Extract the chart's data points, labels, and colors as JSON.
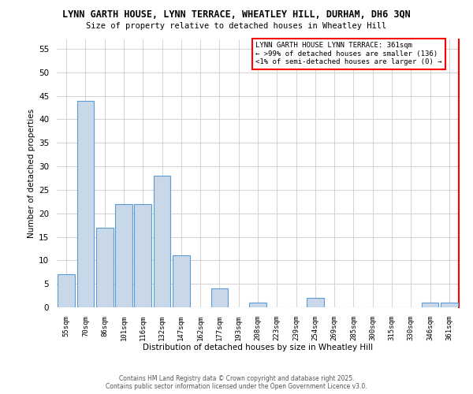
{
  "title": "LYNN GARTH HOUSE, LYNN TERRACE, WHEATLEY HILL, DURHAM, DH6 3QN",
  "subtitle": "Size of property relative to detached houses in Wheatley Hill",
  "xlabel": "Distribution of detached houses by size in Wheatley Hill",
  "ylabel": "Number of detached properties",
  "categories": [
    "55sqm",
    "70sqm",
    "86sqm",
    "101sqm",
    "116sqm",
    "132sqm",
    "147sqm",
    "162sqm",
    "177sqm",
    "193sqm",
    "208sqm",
    "223sqm",
    "239sqm",
    "254sqm",
    "269sqm",
    "285sqm",
    "300sqm",
    "315sqm",
    "330sqm",
    "346sqm",
    "361sqm"
  ],
  "values": [
    7,
    44,
    17,
    22,
    22,
    28,
    11,
    0,
    4,
    0,
    1,
    0,
    0,
    2,
    0,
    0,
    0,
    0,
    0,
    1,
    1
  ],
  "bar_color": "#c8d8e8",
  "bar_edge_color": "#5b9bd5",
  "highlight_line_color": "#ff0000",
  "ylim": [
    0,
    57
  ],
  "yticks": [
    0,
    5,
    10,
    15,
    20,
    25,
    30,
    35,
    40,
    45,
    50,
    55
  ],
  "annotation_text": "LYNN GARTH HOUSE LYNN TERRACE: 361sqm\n← >99% of detached houses are smaller (136)\n<1% of semi-detached houses are larger (0) →",
  "annotation_box_color": "#ffffff",
  "annotation_border_color": "#ff0000",
  "footer_text": "Contains HM Land Registry data © Crown copyright and database right 2025.\nContains public sector information licensed under the Open Government Licence v3.0.",
  "background_color": "#ffffff",
  "grid_color": "#cccccc"
}
